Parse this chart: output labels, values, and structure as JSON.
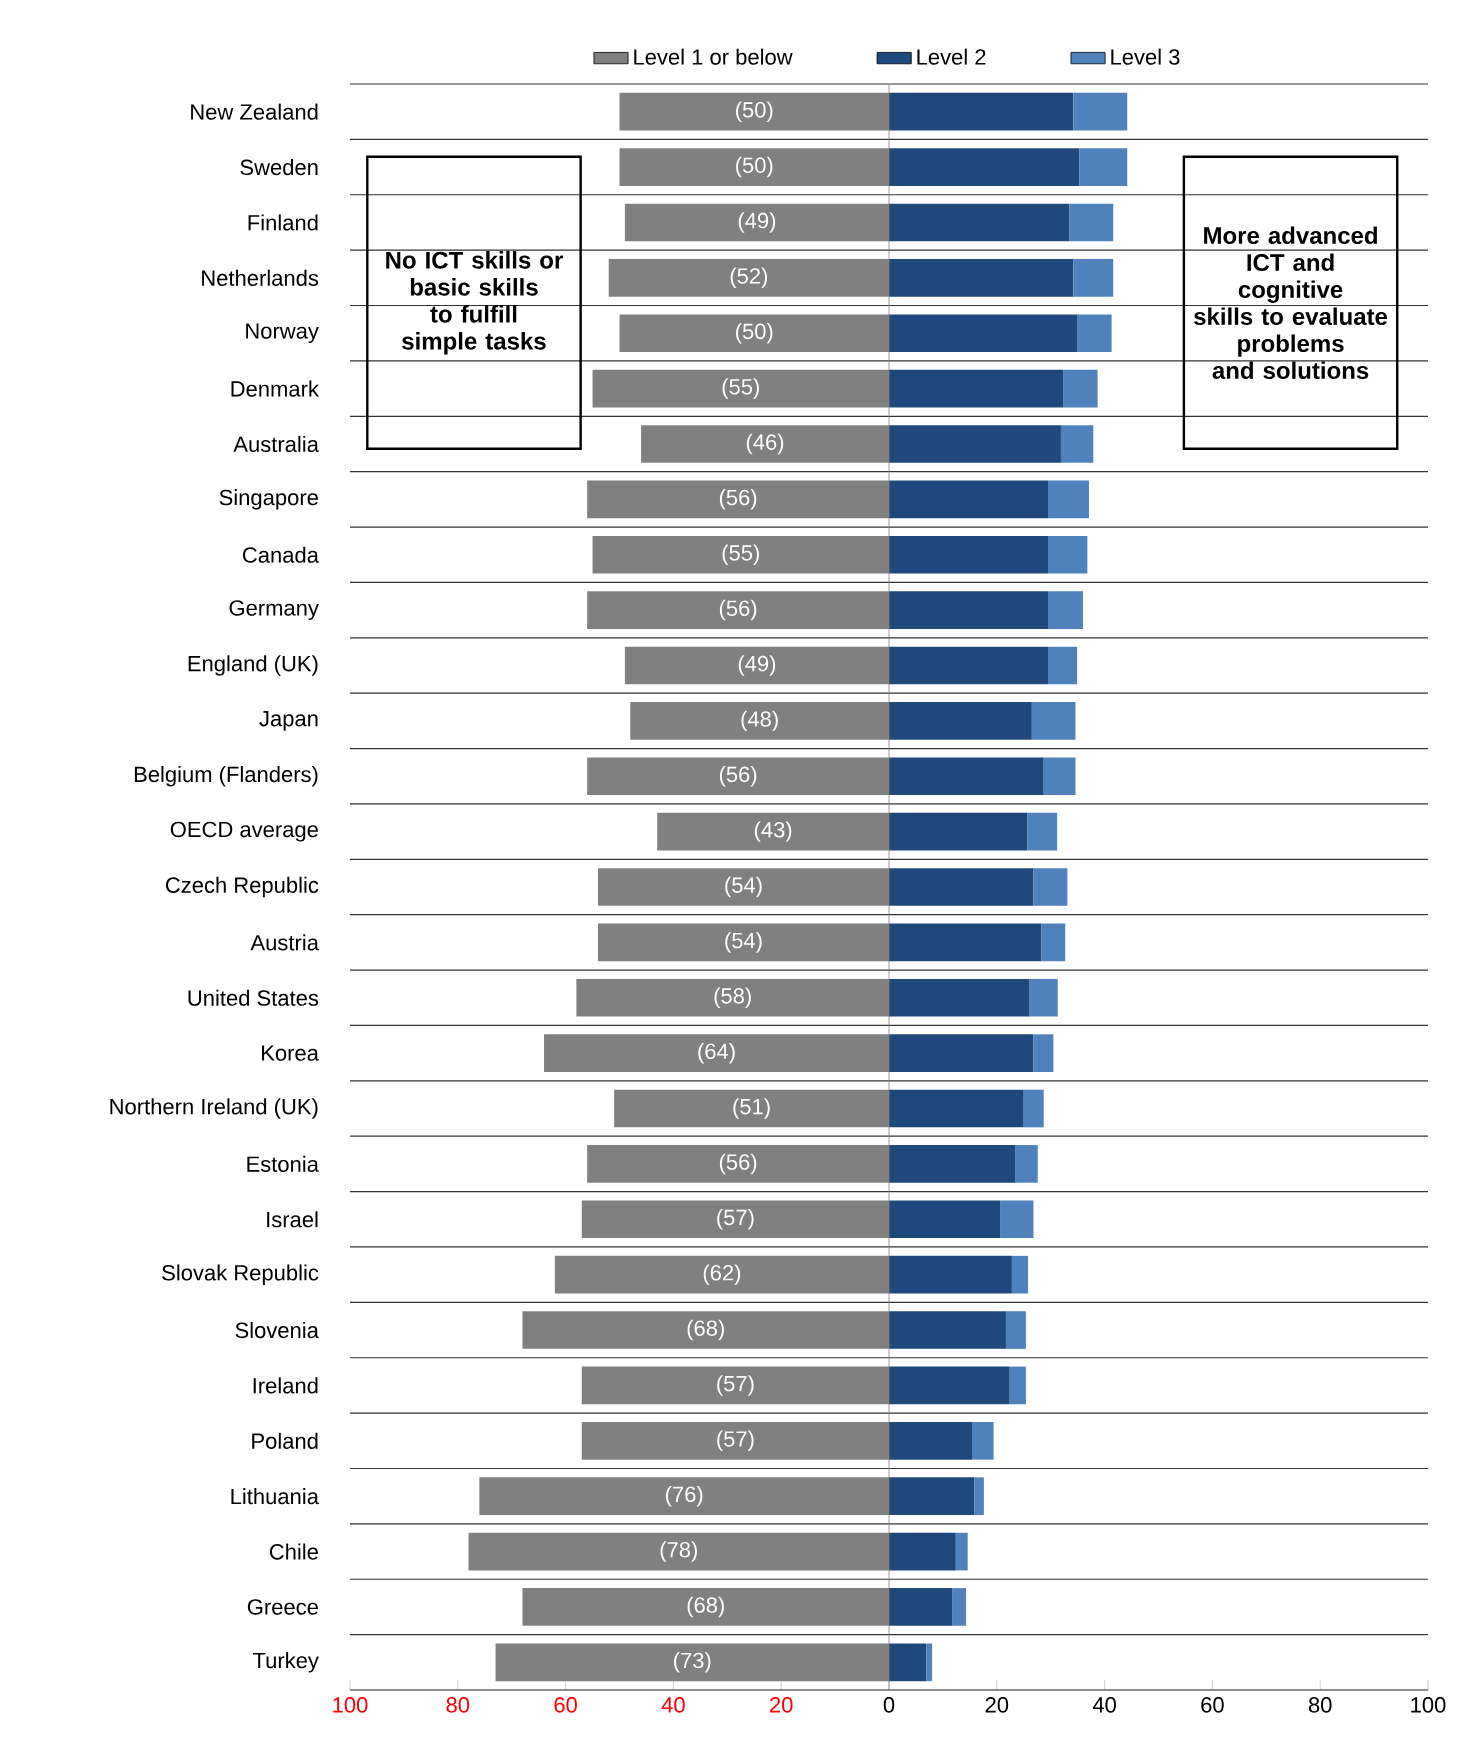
{
  "chart_data": {
    "type": "bar",
    "orientation": "horizontal",
    "stacked": true,
    "categories": [
      "New Zealand",
      "Sweden",
      "Finland",
      "Netherlands",
      "Norway",
      "Denmark",
      "Australia",
      "Singapore",
      "Canada",
      "Germany",
      "England (UK)",
      "Japan",
      "Belgium (Flanders)",
      "OECD average",
      "Czech Republic",
      "Austria",
      "United States",
      "Korea",
      "Northern Ireland (UK)",
      "Estonia",
      "Israel",
      "Slovak Republic",
      "Slovenia",
      "Ireland",
      "Poland",
      "Lithuania",
      "Chile",
      "Greece",
      "Turkey"
    ],
    "series": [
      {
        "name": "Level 1 or below",
        "color": "#808080",
        "values": [
          -50,
          -50,
          -49,
          -52,
          -50,
          -55,
          -46,
          -56,
          -55,
          -56,
          -49,
          -48,
          -56,
          -43,
          -54,
          -54,
          -58,
          -64,
          -51,
          -56,
          -57,
          -62,
          -68,
          -57,
          -57,
          -76,
          -78,
          -68,
          -73
        ],
        "value_labels": [
          "(50)",
          "(50)",
          "(49)",
          "(52)",
          "(50)",
          "(55)",
          "(46)",
          "(56)",
          "(55)",
          "(56)",
          "(49)",
          "(48)",
          "(56)",
          "(43)",
          "(54)",
          "(54)",
          "(58)",
          "(64)",
          "(51)",
          "(56)",
          "(57)",
          "(62)",
          "(68)",
          "(57)",
          "(57)",
          "(76)",
          "(78)",
          "(68)",
          "(73)"
        ]
      },
      {
        "name": "Level 2",
        "color": "#1f497d",
        "values": [
          34.2,
          35.3,
          33.5,
          34.2,
          35.0,
          32.4,
          31.9,
          29.5,
          29.5,
          29.5,
          29.5,
          26.5,
          28.7,
          25.7,
          26.8,
          28.3,
          26.1,
          26.8,
          25.0,
          23.5,
          20.6,
          22.8,
          21.7,
          22.4,
          15.4,
          15.8,
          12.4,
          11.7,
          6.9
        ]
      },
      {
        "name": "Level 3",
        "color": "#4f81bd",
        "values": [
          10.0,
          8.9,
          8.1,
          7.4,
          6.3,
          6.3,
          6.0,
          7.6,
          7.3,
          6.5,
          5.4,
          8.1,
          5.9,
          5.5,
          6.3,
          4.4,
          5.2,
          3.7,
          3.7,
          4.1,
          6.2,
          3.0,
          3.7,
          3.0,
          4.0,
          1.8,
          2.2,
          2.6,
          1.1
        ]
      }
    ],
    "xlim": [
      -100,
      100
    ],
    "xticks": [
      {
        "value": -100,
        "label": "100"
      },
      {
        "value": -80,
        "label": "80"
      },
      {
        "value": -60,
        "label": "60"
      },
      {
        "value": -40,
        "label": "40"
      },
      {
        "value": -20,
        "label": "20"
      },
      0,
      20,
      40,
      60,
      80,
      100
    ],
    "grid": "y",
    "legend": "top",
    "annotations": [
      "No ICT skills or basic skills to fulfill simple tasks",
      "More advanced ICT and cognitive skills to evaluate problems and solutions"
    ]
  }
}
